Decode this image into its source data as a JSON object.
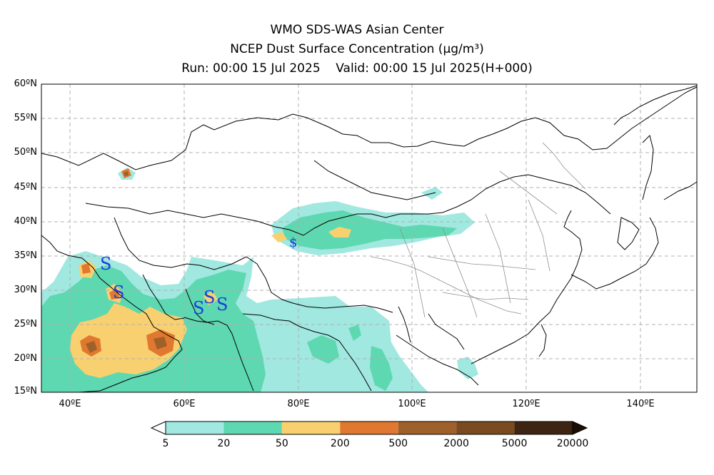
{
  "header": {
    "line1": "WMO SDS-WAS Asian Center",
    "line2": "NCEP Dust Surface Concentration (µg/m³)",
    "line3": "Run: 00:00 15 Jul 2025    Valid: 00:00 15 Jul 2025(H+000)"
  },
  "map": {
    "lat_labels": [
      "60ºN",
      "55ºN",
      "50ºN",
      "45ºN",
      "40ºN",
      "35ºN",
      "30ºN",
      "25ºN",
      "20ºN",
      "15ºN"
    ],
    "lon_labels": [
      "40ºE",
      "60ºE",
      "80ºE",
      "100ºE",
      "120ºE",
      "140ºE"
    ],
    "lon_range": [
      35,
      150
    ],
    "lat_range": [
      15,
      60
    ],
    "dust_storm_symbol": "S",
    "dust_haze_symbol": "$",
    "gridlines": true
  },
  "colorbar": {
    "labels": [
      "5",
      "20",
      "50",
      "200",
      "500",
      "2000",
      "5000",
      "20000"
    ],
    "colors": [
      "#a0e8e0",
      "#5ed8b0",
      "#f8d070",
      "#e07830",
      "#a0602a",
      "#7a4a20",
      "#3e2412"
    ]
  }
}
